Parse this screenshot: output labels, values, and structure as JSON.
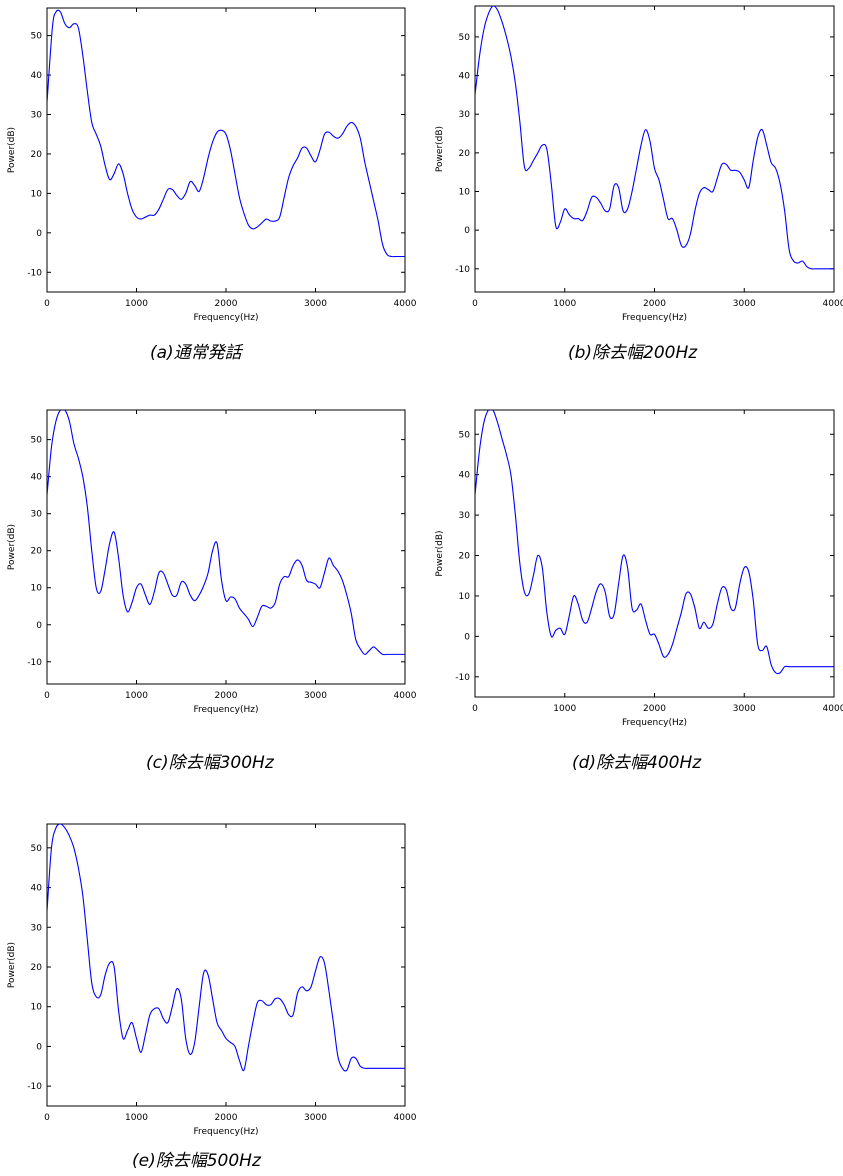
{
  "colors": {
    "line": "#0000ff",
    "axis": "#000000"
  },
  "chart_data": [
    {
      "id": "a",
      "type": "line",
      "caption": "(a)通常発話",
      "xlabel": "Frequency(Hz)",
      "ylabel": "Power(dB)",
      "xlim": [
        0,
        4000
      ],
      "ylim": [
        -15,
        57
      ],
      "xticks": [
        0,
        1000,
        2000,
        3000,
        4000
      ],
      "yticks": [
        -10,
        0,
        10,
        20,
        30,
        40,
        50
      ],
      "grid": false,
      "series": [
        {
          "x": [
            0,
            60,
            100,
            150,
            200,
            250,
            300,
            350,
            400,
            450,
            500,
            550,
            600,
            650,
            700,
            750,
            800,
            850,
            900,
            950,
            1000,
            1050,
            1100,
            1150,
            1200,
            1250,
            1300,
            1350,
            1400,
            1450,
            1500,
            1550,
            1600,
            1650,
            1700,
            1750,
            1800,
            1850,
            1900,
            1950,
            2000,
            2050,
            2100,
            2150,
            2200,
            2250,
            2300,
            2350,
            2400,
            2450,
            2500,
            2550,
            2600,
            2650,
            2700,
            2750,
            2800,
            2850,
            2900,
            2950,
            3000,
            3050,
            3100,
            3150,
            3200,
            3250,
            3300,
            3350,
            3400,
            3450,
            3500,
            3550,
            3600,
            3650,
            3700,
            3750,
            3800,
            3850,
            3900,
            3950,
            4000
          ],
          "y": [
            33,
            52,
            56,
            56,
            53,
            52,
            53,
            52,
            45,
            36,
            28,
            25,
            22,
            17,
            13.5,
            15,
            17.5,
            15,
            10,
            6,
            4,
            3.5,
            4,
            4.5,
            4.5,
            6,
            8.5,
            11,
            11,
            9.5,
            8.5,
            10,
            13,
            12,
            10.5,
            14,
            19,
            23,
            25.5,
            26,
            25,
            21,
            15,
            9,
            5,
            2,
            1,
            1.5,
            2.5,
            3.5,
            3,
            3,
            4,
            9,
            14,
            17,
            19,
            21.5,
            21.5,
            19.5,
            18,
            21,
            25,
            25.5,
            24.5,
            24,
            25,
            27,
            28,
            27,
            24,
            18,
            13,
            8,
            3,
            -3,
            -5.5,
            -6,
            -6,
            -6,
            -6
          ]
        }
      ]
    },
    {
      "id": "b",
      "type": "line",
      "caption": "(b)除去幅200Hz",
      "xlabel": "Frequency(Hz)",
      "ylabel": "Power(dB)",
      "xlim": [
        0,
        4000
      ],
      "ylim": [
        -16,
        58
      ],
      "xticks": [
        0,
        1000,
        2000,
        3000,
        4000
      ],
      "yticks": [
        -10,
        0,
        10,
        20,
        30,
        40,
        50
      ],
      "grid": false,
      "series": [
        {
          "x": [
            0,
            50,
            100,
            150,
            200,
            250,
            300,
            350,
            400,
            450,
            500,
            550,
            600,
            650,
            700,
            750,
            800,
            850,
            900,
            950,
            1000,
            1050,
            1100,
            1150,
            1200,
            1250,
            1300,
            1350,
            1400,
            1450,
            1500,
            1550,
            1600,
            1650,
            1700,
            1750,
            1800,
            1850,
            1900,
            1950,
            2000,
            2050,
            2100,
            2150,
            2200,
            2250,
            2300,
            2350,
            2400,
            2450,
            2500,
            2550,
            2600,
            2650,
            2700,
            2750,
            2800,
            2850,
            2900,
            2950,
            3000,
            3050,
            3100,
            3150,
            3200,
            3250,
            3300,
            3350,
            3400,
            3450,
            3500,
            3550,
            3600,
            3650,
            3700,
            3750,
            3800,
            3850,
            3900,
            3950,
            4000
          ],
          "y": [
            35,
            45,
            52,
            56,
            58,
            57,
            54,
            50,
            45,
            38,
            28,
            16.5,
            16,
            18,
            20,
            22,
            21,
            12,
            1,
            2,
            5.5,
            4,
            3,
            3,
            2.5,
            5,
            8.5,
            8.5,
            7,
            5,
            5.5,
            11.5,
            11,
            5,
            5.5,
            10,
            16,
            22,
            26,
            23,
            16,
            13,
            8,
            3,
            3,
            0,
            -4,
            -4,
            -1,
            5,
            9.5,
            11,
            10.5,
            10,
            13.5,
            17,
            17,
            15.5,
            15.5,
            15,
            13,
            11,
            18,
            24,
            26,
            22,
            17.5,
            16,
            12,
            5,
            -5,
            -8,
            -8.5,
            -8,
            -9.5,
            -10,
            -10,
            -10,
            -10,
            -10,
            -10
          ]
        }
      ]
    },
    {
      "id": "c",
      "type": "line",
      "caption": "(c)除去幅300Hz",
      "xlabel": "Frequency(Hz)",
      "ylabel": "Power(dB)",
      "xlim": [
        0,
        4000
      ],
      "ylim": [
        -16,
        58
      ],
      "xticks": [
        0,
        1000,
        2000,
        3000,
        4000
      ],
      "yticks": [
        -10,
        0,
        10,
        20,
        30,
        40,
        50
      ],
      "grid": false,
      "series": [
        {
          "x": [
            0,
            50,
            100,
            150,
            200,
            250,
            300,
            350,
            400,
            450,
            500,
            550,
            600,
            650,
            700,
            750,
            800,
            850,
            900,
            950,
            1000,
            1050,
            1100,
            1150,
            1200,
            1250,
            1300,
            1350,
            1400,
            1450,
            1500,
            1550,
            1600,
            1650,
            1700,
            1750,
            1800,
            1850,
            1900,
            1950,
            2000,
            2050,
            2100,
            2150,
            2200,
            2250,
            2300,
            2350,
            2400,
            2450,
            2500,
            2550,
            2600,
            2650,
            2700,
            2750,
            2800,
            2850,
            2900,
            2950,
            3000,
            3050,
            3100,
            3150,
            3200,
            3250,
            3300,
            3350,
            3400,
            3450,
            3500,
            3550,
            3600,
            3650,
            3700,
            3750,
            3800,
            3850,
            3900,
            3950,
            4000
          ],
          "y": [
            35,
            48,
            55,
            58,
            58,
            55,
            49,
            45,
            40,
            32,
            20,
            10,
            9,
            15,
            22,
            25,
            18,
            8,
            3.5,
            6,
            10,
            11,
            8,
            5.5,
            9,
            14,
            14,
            11,
            8,
            8,
            11.5,
            11,
            8,
            6.5,
            8,
            10.5,
            14,
            20,
            22,
            12,
            6.5,
            7.5,
            7,
            4.5,
            3,
            1.5,
            -0.5,
            2,
            5,
            5,
            4.5,
            6,
            11,
            13,
            13,
            16,
            17.5,
            16,
            12,
            11.5,
            11,
            10,
            14,
            18,
            16,
            14.5,
            12,
            8,
            3,
            -4,
            -6.5,
            -8,
            -7,
            -6,
            -7,
            -8,
            -8,
            -8,
            -8,
            -8,
            -8
          ]
        }
      ]
    },
    {
      "id": "d",
      "type": "line",
      "caption": "(d)除去幅400Hz",
      "xlabel": "Frequency(Hz)",
      "ylabel": "Power(dB)",
      "xlim": [
        0,
        4000
      ],
      "ylim": [
        -15,
        56
      ],
      "xticks": [
        0,
        1000,
        2000,
        3000,
        4000
      ],
      "yticks": [
        -10,
        0,
        10,
        20,
        30,
        40,
        50
      ],
      "grid": false,
      "series": [
        {
          "x": [
            0,
            50,
            100,
            150,
            200,
            250,
            300,
            350,
            400,
            450,
            500,
            550,
            600,
            650,
            700,
            750,
            800,
            850,
            900,
            950,
            1000,
            1050,
            1100,
            1150,
            1200,
            1250,
            1300,
            1350,
            1400,
            1450,
            1500,
            1550,
            1600,
            1650,
            1700,
            1750,
            1800,
            1850,
            1900,
            1950,
            2000,
            2050,
            2100,
            2150,
            2200,
            2250,
            2300,
            2350,
            2400,
            2450,
            2500,
            2550,
            2600,
            2650,
            2700,
            2750,
            2800,
            2850,
            2900,
            2950,
            3000,
            3050,
            3100,
            3150,
            3200,
            3250,
            3300,
            3350,
            3400,
            3450,
            3500,
            3550,
            3600,
            3650,
            3700,
            3750,
            3800,
            3850,
            3900,
            3950,
            4000
          ],
          "y": [
            35,
            46,
            53,
            56,
            56,
            53,
            49,
            45,
            40,
            30,
            18,
            11,
            10.5,
            15,
            20,
            17,
            6,
            0,
            1.5,
            2,
            0.5,
            5,
            10,
            8,
            4,
            3.5,
            7,
            11,
            13,
            11,
            5,
            5.5,
            13,
            20,
            17,
            7,
            6.5,
            8,
            4,
            0.5,
            0.5,
            -2,
            -5,
            -4.5,
            -2,
            2,
            6,
            10.5,
            10.5,
            7,
            2,
            3.5,
            2,
            3,
            8,
            12,
            11.5,
            7,
            7,
            13,
            17,
            16,
            9,
            -2,
            -3.5,
            -2.5,
            -7,
            -9,
            -9,
            -7.5,
            -7.5,
            -7.5,
            -7.5,
            -7.5,
            -7.5,
            -7.5,
            -7.5,
            -7.5,
            -7.5,
            -7.5,
            -7.5
          ]
        }
      ]
    },
    {
      "id": "e",
      "type": "line",
      "caption": "(e)除去幅500Hz",
      "xlabel": "Frequency(Hz)",
      "ylabel": "Power(dB)",
      "xlim": [
        0,
        4000
      ],
      "ylim": [
        -15,
        56
      ],
      "xticks": [
        0,
        1000,
        2000,
        3000,
        4000
      ],
      "yticks": [
        -10,
        0,
        10,
        20,
        30,
        40,
        50
      ],
      "grid": false,
      "series": [
        {
          "x": [
            0,
            50,
            100,
            150,
            200,
            250,
            300,
            350,
            400,
            450,
            500,
            550,
            600,
            650,
            700,
            750,
            800,
            850,
            900,
            950,
            1000,
            1050,
            1100,
            1150,
            1200,
            1250,
            1300,
            1350,
            1400,
            1450,
            1500,
            1550,
            1600,
            1650,
            1700,
            1750,
            1800,
            1850,
            1900,
            1950,
            2000,
            2050,
            2100,
            2150,
            2200,
            2250,
            2300,
            2350,
            2400,
            2450,
            2500,
            2550,
            2600,
            2650,
            2700,
            2750,
            2800,
            2850,
            2900,
            2950,
            3000,
            3050,
            3100,
            3150,
            3200,
            3250,
            3300,
            3350,
            3400,
            3450,
            3500,
            3550,
            3600,
            3650,
            3700,
            3750,
            3800,
            3850,
            3900,
            3950,
            4000
          ],
          "y": [
            34,
            50,
            55,
            56,
            55,
            53,
            50,
            45,
            38,
            27,
            16,
            12.5,
            13,
            18,
            21,
            20,
            9,
            2,
            4,
            6,
            2,
            -1.5,
            3,
            8,
            9.5,
            9.5,
            7,
            6,
            10,
            14.5,
            12,
            2,
            -2,
            1,
            10,
            18.5,
            18,
            12,
            6,
            4,
            2,
            1,
            0,
            -3.5,
            -6,
            0,
            6,
            11,
            11.5,
            10.5,
            10.5,
            12,
            12,
            10.5,
            8,
            8,
            13.5,
            15,
            14,
            15,
            19,
            22.5,
            21,
            14,
            6,
            -2.5,
            -5.5,
            -6,
            -3,
            -3,
            -5,
            -5.5,
            -5.5,
            -5.5,
            -5.5,
            -5.5,
            -5.5,
            -5.5,
            -5.5,
            -5.5,
            -5.5
          ]
        }
      ]
    }
  ]
}
